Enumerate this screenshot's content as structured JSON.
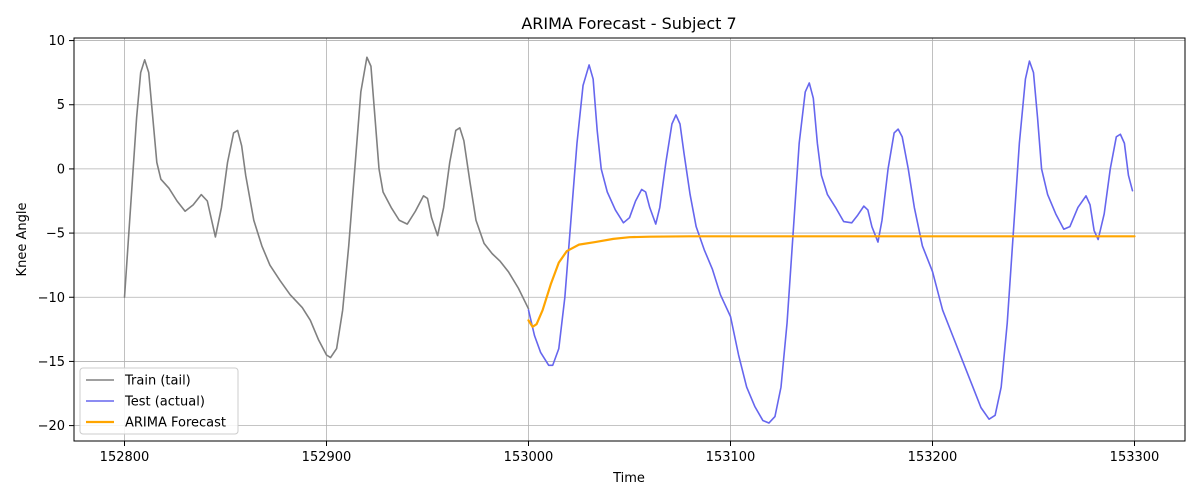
{
  "chart_data": {
    "type": "line",
    "title": "ARIMA Forecast - Subject 7",
    "xlabel": "Time",
    "ylabel": "Knee Angle",
    "xlim": [
      152775,
      153325
    ],
    "ylim": [
      -21.2,
      10.2
    ],
    "xticks": [
      152800,
      152900,
      153000,
      153100,
      153200,
      153300
    ],
    "yticks": [
      -20,
      -15,
      -10,
      -5,
      0,
      5,
      10
    ],
    "grid": true,
    "legend_position": "lower-left",
    "series": [
      {
        "name": "Train (tail)",
        "color": "#808080",
        "points": [
          [
            152800,
            -10
          ],
          [
            152803,
            -3
          ],
          [
            152806,
            4
          ],
          [
            152808,
            7.5
          ],
          [
            152810,
            8.5
          ],
          [
            152812,
            7.5
          ],
          [
            152814,
            4
          ],
          [
            152816,
            0.5
          ],
          [
            152818,
            -0.8
          ],
          [
            152822,
            -1.5
          ],
          [
            152826,
            -2.5
          ],
          [
            152830,
            -3.3
          ],
          [
            152834,
            -2.8
          ],
          [
            152838,
            -2.0
          ],
          [
            152841,
            -2.5
          ],
          [
            152845,
            -5.3
          ],
          [
            152848,
            -3
          ],
          [
            152851,
            0.5
          ],
          [
            152854,
            2.8
          ],
          [
            152856,
            3.0
          ],
          [
            152858,
            1.8
          ],
          [
            152860,
            -0.5
          ],
          [
            152864,
            -4
          ],
          [
            152868,
            -6
          ],
          [
            152872,
            -7.5
          ],
          [
            152877,
            -8.7
          ],
          [
            152882,
            -9.8
          ],
          [
            152888,
            -10.8
          ],
          [
            152892,
            -11.8
          ],
          [
            152896,
            -13.3
          ],
          [
            152900,
            -14.5
          ],
          [
            152902,
            -14.7
          ],
          [
            152905,
            -14
          ],
          [
            152908,
            -11
          ],
          [
            152911,
            -6
          ],
          [
            152914,
            0
          ],
          [
            152917,
            6
          ],
          [
            152920,
            8.7
          ],
          [
            152922,
            8
          ],
          [
            152924,
            4
          ],
          [
            152926,
            0
          ],
          [
            152928,
            -1.8
          ],
          [
            152932,
            -3
          ],
          [
            152936,
            -4.0
          ],
          [
            152940,
            -4.3
          ],
          [
            152944,
            -3.3
          ],
          [
            152948,
            -2.1
          ],
          [
            152950,
            -2.3
          ],
          [
            152952,
            -3.8
          ],
          [
            152955,
            -5.2
          ],
          [
            152958,
            -3
          ],
          [
            152961,
            0.5
          ],
          [
            152964,
            3.0
          ],
          [
            152966,
            3.2
          ],
          [
            152968,
            2.2
          ],
          [
            152971,
            -1
          ],
          [
            152974,
            -4
          ],
          [
            152978,
            -5.8
          ],
          [
            152982,
            -6.6
          ],
          [
            152986,
            -7.2
          ],
          [
            152990,
            -8
          ],
          [
            152995,
            -9.3
          ],
          [
            153000,
            -10.9
          ]
        ]
      },
      {
        "name": "Test (actual)",
        "color": "#6666ee",
        "points": [
          [
            153000,
            -11
          ],
          [
            153003,
            -13
          ],
          [
            153006,
            -14.3
          ],
          [
            153010,
            -15.3
          ],
          [
            153012,
            -15.3
          ],
          [
            153015,
            -14
          ],
          [
            153018,
            -10
          ],
          [
            153021,
            -4
          ],
          [
            153024,
            2
          ],
          [
            153027,
            6.5
          ],
          [
            153030,
            8.1
          ],
          [
            153032,
            7
          ],
          [
            153034,
            3
          ],
          [
            153036,
            0
          ],
          [
            153039,
            -1.8
          ],
          [
            153043,
            -3.2
          ],
          [
            153047,
            -4.2
          ],
          [
            153050,
            -3.8
          ],
          [
            153053,
            -2.5
          ],
          [
            153056,
            -1.6
          ],
          [
            153058,
            -1.8
          ],
          [
            153060,
            -3
          ],
          [
            153063,
            -4.3
          ],
          [
            153065,
            -3
          ],
          [
            153068,
            0.5
          ],
          [
            153071,
            3.5
          ],
          [
            153073,
            4.2
          ],
          [
            153075,
            3.5
          ],
          [
            153077,
            1.2
          ],
          [
            153080,
            -2
          ],
          [
            153083,
            -4.5
          ],
          [
            153087,
            -6.3
          ],
          [
            153091,
            -7.8
          ],
          [
            153095,
            -9.8
          ],
          [
            153100,
            -11.5
          ],
          [
            153104,
            -14.5
          ],
          [
            153108,
            -17
          ],
          [
            153112,
            -18.5
          ],
          [
            153116,
            -19.6
          ],
          [
            153119,
            -19.8
          ],
          [
            153122,
            -19.3
          ],
          [
            153125,
            -17
          ],
          [
            153128,
            -12
          ],
          [
            153131,
            -5
          ],
          [
            153134,
            2
          ],
          [
            153137,
            6
          ],
          [
            153139,
            6.7
          ],
          [
            153141,
            5.5
          ],
          [
            153143,
            2
          ],
          [
            153145,
            -0.5
          ],
          [
            153148,
            -2
          ],
          [
            153152,
            -3
          ],
          [
            153156,
            -4.1
          ],
          [
            153160,
            -4.2
          ],
          [
            153163,
            -3.6
          ],
          [
            153166,
            -2.9
          ],
          [
            153168,
            -3.2
          ],
          [
            153170,
            -4.5
          ],
          [
            153173,
            -5.7
          ],
          [
            153175,
            -4
          ],
          [
            153178,
            0
          ],
          [
            153181,
            2.8
          ],
          [
            153183,
            3.1
          ],
          [
            153185,
            2.5
          ],
          [
            153188,
            0
          ],
          [
            153191,
            -3
          ],
          [
            153195,
            -6
          ],
          [
            153200,
            -8
          ],
          [
            153205,
            -11
          ],
          [
            153210,
            -13
          ],
          [
            153215,
            -15
          ],
          [
            153220,
            -17
          ],
          [
            153224,
            -18.6
          ],
          [
            153228,
            -19.5
          ],
          [
            153231,
            -19.2
          ],
          [
            153234,
            -17
          ],
          [
            153237,
            -12
          ],
          [
            153240,
            -5
          ],
          [
            153243,
            2
          ],
          [
            153246,
            7
          ],
          [
            153248,
            8.4
          ],
          [
            153250,
            7.5
          ],
          [
            153252,
            4
          ],
          [
            153254,
            0
          ],
          [
            153257,
            -2
          ],
          [
            153261,
            -3.5
          ],
          [
            153265,
            -4.7
          ],
          [
            153268,
            -4.5
          ],
          [
            153272,
            -3
          ],
          [
            153276,
            -2.1
          ],
          [
            153278,
            -2.8
          ],
          [
            153280,
            -4.8
          ],
          [
            153282,
            -5.5
          ],
          [
            153285,
            -3.5
          ],
          [
            153288,
            0
          ],
          [
            153291,
            2.5
          ],
          [
            153293,
            2.7
          ],
          [
            153295,
            2
          ],
          [
            153297,
            -0.5
          ],
          [
            153299,
            -1.7
          ]
        ]
      },
      {
        "name": "ARIMA Forecast",
        "color": "#ffa500",
        "points": [
          [
            153000,
            -11.8
          ],
          [
            153002,
            -12.3
          ],
          [
            153004,
            -12.1
          ],
          [
            153007,
            -11
          ],
          [
            153011,
            -9
          ],
          [
            153015,
            -7.3
          ],
          [
            153019,
            -6.4
          ],
          [
            153025,
            -5.9
          ],
          [
            153033,
            -5.7
          ],
          [
            153042,
            -5.45
          ],
          [
            153050,
            -5.32
          ],
          [
            153060,
            -5.28
          ],
          [
            153080,
            -5.25
          ],
          [
            153120,
            -5.25
          ],
          [
            153200,
            -5.25
          ],
          [
            153300,
            -5.25
          ]
        ]
      }
    ]
  }
}
